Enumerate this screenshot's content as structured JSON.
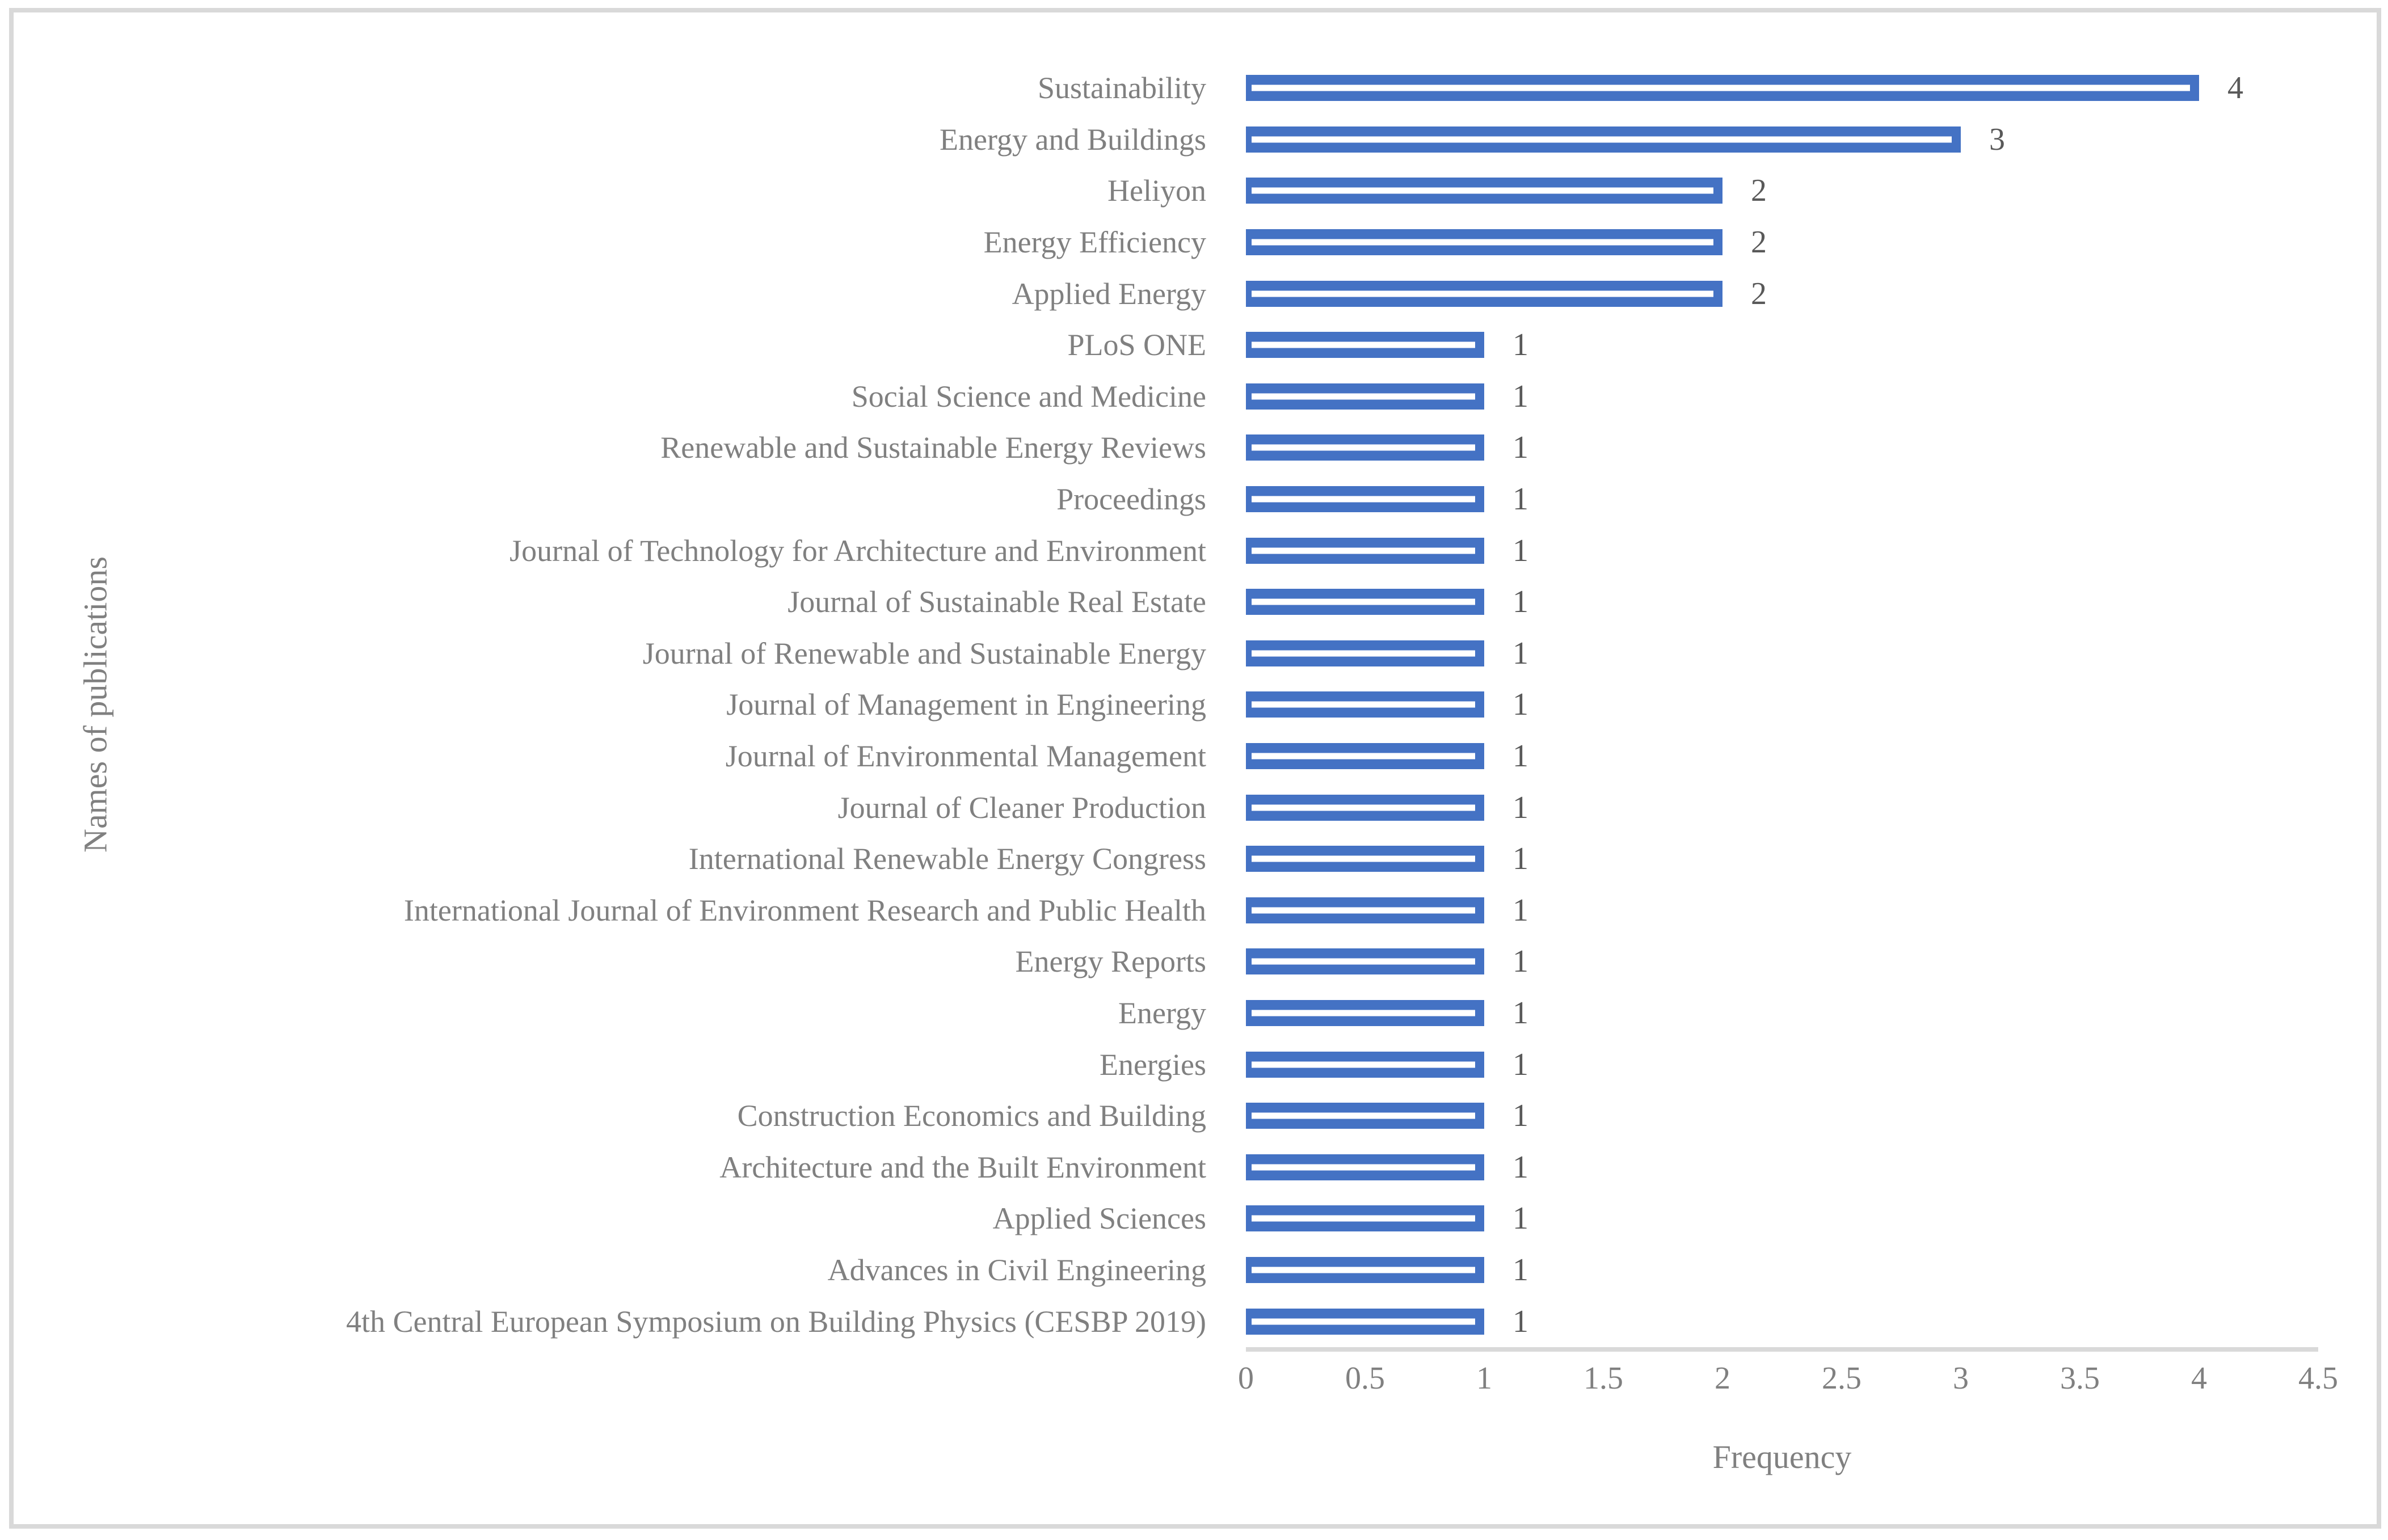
{
  "figure": {
    "background": "#FFFFFF",
    "border_color": "#D9D9D9"
  },
  "colors": {
    "bar": "#4472C4",
    "bar_stripe": "#FFFFFF",
    "category_text": "#808080",
    "value_text": "#595959",
    "tick_text": "#808080",
    "axis_line": "#D9D9D9"
  },
  "chart_data": {
    "type": "bar",
    "orientation": "horizontal",
    "title": "",
    "xlabel": "Frequency",
    "ylabel": "Names of publications",
    "xlim": [
      0,
      4.5
    ],
    "x_ticks": [
      "0",
      "0.5",
      "1",
      "1.5",
      "2",
      "2.5",
      "3",
      "3.5",
      "4",
      "4.5"
    ],
    "grid": false,
    "legend": "none",
    "bar_value_labels_shown": true,
    "categories": [
      "Sustainability",
      "Energy and Buildings",
      "Heliyon",
      "Energy Efficiency",
      "Applied Energy",
      "PLoS ONE",
      "Social Science and Medicine",
      "Renewable and Sustainable Energy Reviews",
      "Proceedings",
      "Journal of Technology for Architecture and Environment",
      "Journal of Sustainable Real Estate",
      "Journal of Renewable and Sustainable Energy",
      "Journal of Management in Engineering",
      "Journal of Environmental Management",
      "Journal of Cleaner Production",
      "International Renewable Energy Congress",
      "International Journal of Environment Research and Public Health",
      "Energy Reports",
      "Energy",
      "Energies",
      "Construction Economics and Building",
      "Architecture and the Built Environment",
      "Applied Sciences",
      "Advances in Civil Engineering",
      "4th Central European Symposium on Building Physics (CESBP 2019)"
    ],
    "values": [
      4,
      3,
      2,
      2,
      2,
      1,
      1,
      1,
      1,
      1,
      1,
      1,
      1,
      1,
      1,
      1,
      1,
      1,
      1,
      1,
      1,
      1,
      1,
      1,
      1
    ]
  }
}
